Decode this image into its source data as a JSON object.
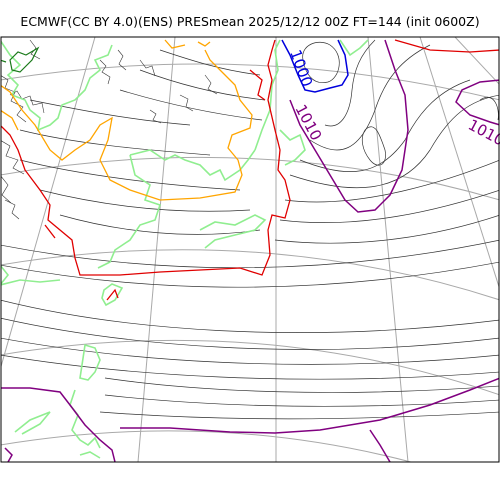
{
  "title": "ECMWF(CC BY 4.0)(ENS) PRESmean 2025/12/12 00Z FT=144 (init 0600Z)",
  "isobar_labels": [
    "1000",
    "1010",
    "1010"
  ],
  "colors": {
    "isobar": "#333333",
    "isobar_1000": "#0000dd",
    "isobar_1010": "#800080",
    "coastline": "#90ee90",
    "coast_dark": "#1a7a1a",
    "contour_orange": "#ffa500",
    "contour_red": "#e00000",
    "graticule": "#a9a9a9"
  }
}
